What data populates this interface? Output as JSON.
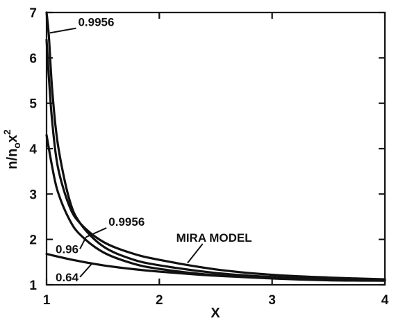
{
  "chart_data": {
    "type": "line",
    "xlabel": "X",
    "ylabel": "n/n",
    "ylabel_sub": "o",
    "ylabel_tail": "x",
    "ylabel_sup": "2",
    "xlim": [
      1,
      4
    ],
    "ylim": [
      1,
      7
    ],
    "x_ticks": [
      1,
      2,
      3,
      4
    ],
    "y_ticks": [
      1,
      2,
      3,
      4,
      5,
      6,
      7
    ],
    "grid": false,
    "legend": "none",
    "series": [
      {
        "name": "0.9956",
        "x": [
          1.0,
          1.02,
          1.05,
          1.1,
          1.2,
          1.3,
          1.5,
          1.75,
          2.0,
          2.5,
          3.0,
          3.5,
          4.0
        ],
        "y": [
          7.0,
          6.5,
          5.3,
          4.1,
          2.9,
          2.35,
          1.85,
          1.57,
          1.43,
          1.26,
          1.17,
          1.12,
          1.1
        ]
      },
      {
        "name": "0.96",
        "x": [
          1.0,
          1.05,
          1.1,
          1.2,
          1.3,
          1.5,
          1.75,
          2.0,
          2.5,
          3.0,
          3.5,
          4.0
        ],
        "y": [
          4.3,
          3.6,
          3.05,
          2.45,
          2.1,
          1.72,
          1.48,
          1.35,
          1.21,
          1.14,
          1.1,
          1.09
        ]
      },
      {
        "name": "MIRA MODEL",
        "x": [
          1.0,
          1.02,
          1.05,
          1.1,
          1.2,
          1.3,
          1.5,
          1.75,
          2.0,
          2.5,
          3.0,
          3.5,
          4.0
        ],
        "y": [
          6.4,
          5.6,
          4.6,
          3.6,
          2.75,
          2.35,
          1.95,
          1.7,
          1.55,
          1.34,
          1.22,
          1.16,
          1.12
        ]
      },
      {
        "name": "0.64",
        "x": [
          1.0,
          1.25,
          1.5,
          1.75,
          2.0,
          2.5,
          3.0,
          3.5,
          4.0
        ],
        "y": [
          1.68,
          1.54,
          1.43,
          1.35,
          1.29,
          1.2,
          1.15,
          1.12,
          1.1
        ]
      }
    ],
    "annotations": [
      {
        "text": "0.9956",
        "x": 1.28,
        "y": 6.7,
        "point_x": 1.03,
        "point_y": 6.55
      },
      {
        "text": "0.9956",
        "x": 1.55,
        "y": 2.3,
        "point_x": 1.35,
        "point_y": 2.05
      },
      {
        "text": "MIRA MODEL",
        "x": 2.15,
        "y": 1.95,
        "point_x": 2.25,
        "point_y": 1.48
      },
      {
        "text": "0.96",
        "x": 1.08,
        "y": 1.7,
        "point_x": 1.35,
        "point_y": 2.05
      },
      {
        "text": "0.64",
        "x": 1.08,
        "y": 1.08,
        "point_x": 1.4,
        "point_y": 1.46
      }
    ]
  }
}
